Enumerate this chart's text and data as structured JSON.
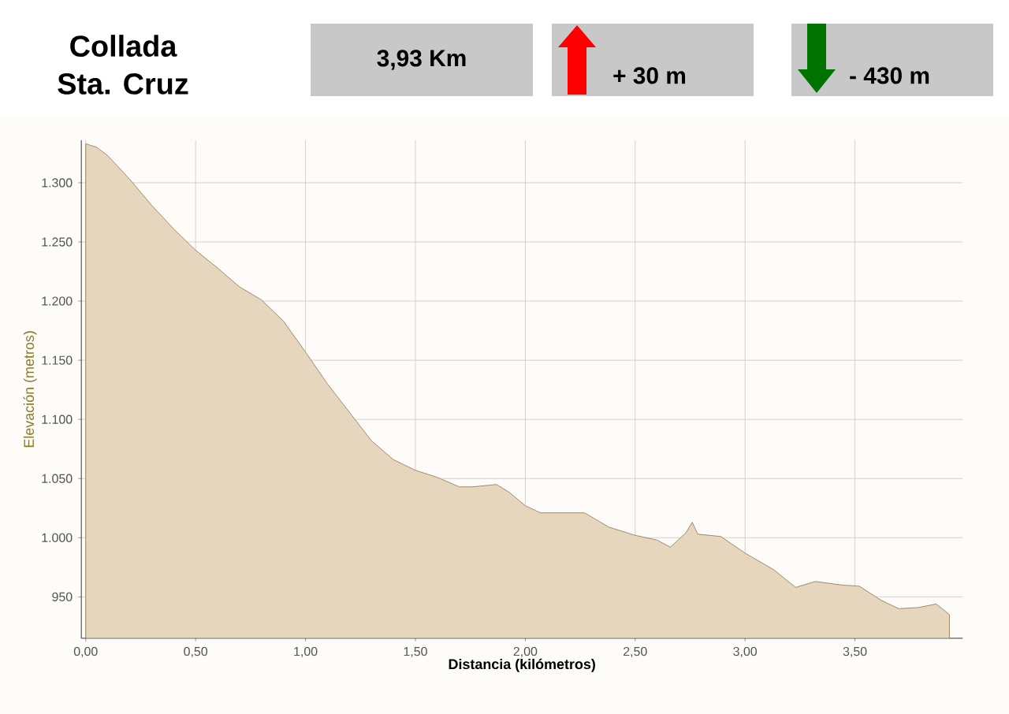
{
  "chart_data": {
    "type": "area",
    "title": "Collada\nSta. Cruz",
    "xlabel": "Distancia (kilómetros)",
    "ylabel": "Elevación (metros)",
    "annotations": [
      "3,93 Km",
      "+ 30 m",
      "- 430 m"
    ],
    "x": [
      0,
      0.05,
      0.1,
      0.2,
      0.3,
      0.4,
      0.5,
      0.6,
      0.7,
      0.8,
      0.9,
      1.0,
      1.1,
      1.2,
      1.3,
      1.4,
      1.5,
      1.6,
      1.7,
      1.76,
      1.87,
      1.93,
      2.0,
      2.07,
      2.19,
      2.27,
      2.38,
      2.5,
      2.6,
      2.66,
      2.73,
      2.76,
      2.785,
      2.89,
      3.0,
      3.13,
      3.23,
      3.32,
      3.44,
      3.52,
      3.62,
      3.7,
      3.79,
      3.87,
      3.93
    ],
    "series": [
      {
        "color": "#e6d6bd",
        "values": [
          1333,
          1330,
          1323,
          1303,
          1281,
          1261,
          1243,
          1228,
          1212,
          1201,
          1183,
          1157,
          1130,
          1106,
          1082,
          1066,
          1057,
          1051,
          1043,
          1043,
          1045,
          1038,
          1027,
          1021,
          1021,
          1021,
          1009,
          1002,
          998,
          992,
          1004,
          1013,
          1003,
          1001,
          987,
          973,
          958,
          963,
          960,
          959,
          947,
          940,
          941,
          944,
          935
        ]
      }
    ],
    "xlim": [
      -0.02,
      3.99
    ],
    "ylim": [
      915,
      1336
    ],
    "xticks": [
      {
        "value": 0,
        "label": "0,00"
      },
      {
        "value": 0.5,
        "label": "0,50"
      },
      {
        "value": 1,
        "label": "1,00"
      },
      {
        "value": 1.5,
        "label": "1,50"
      },
      {
        "value": 2,
        "label": "2,00"
      },
      {
        "value": 2.5,
        "label": "2,50"
      },
      {
        "value": 3,
        "label": "3,00"
      },
      {
        "value": 3.5,
        "label": "3,50"
      }
    ],
    "yticks": [
      950,
      {
        "value": 1000,
        "label": "1.000"
      },
      {
        "value": 1050,
        "label": "1.050"
      },
      {
        "value": 1100,
        "label": "1.100"
      },
      {
        "value": 1150,
        "label": "1.150"
      },
      {
        "value": 1200,
        "label": "1.200"
      },
      {
        "value": 1250,
        "label": "1.250"
      },
      {
        "value": 1300,
        "label": "1.300"
      }
    ],
    "grid": true
  }
}
